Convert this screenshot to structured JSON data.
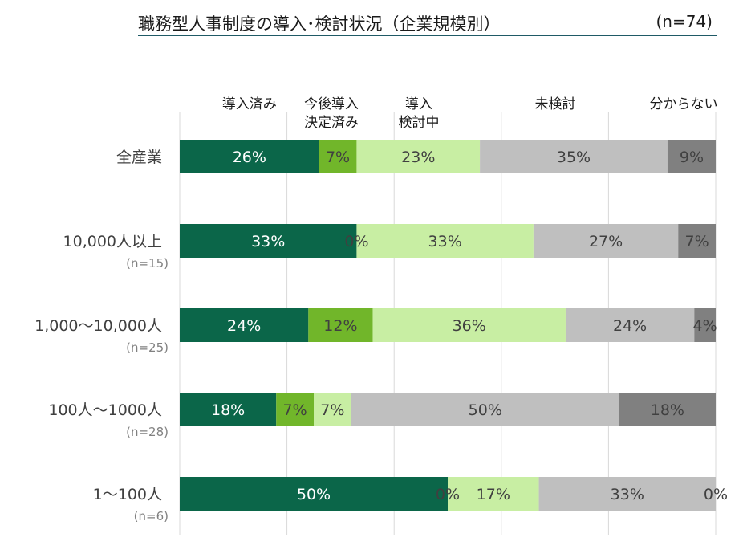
{
  "title": {
    "main": "職務型人事制度の導入･検討状況（企業規模別）",
    "n": "(n=74)"
  },
  "colors": {
    "導入済み": "#0b6649",
    "今後導入決定済み": "#71b62a",
    "導入検討中": "#c8eea3",
    "未検討": "#bfbfbf",
    "分からない": "#808080"
  },
  "chart_data": {
    "type": "bar",
    "orientation": "horizontal",
    "stacked": true,
    "percent": true,
    "categories": [
      {
        "label": "全産業",
        "n": ""
      },
      {
        "label": "10,000人以上",
        "n": "(n=15)"
      },
      {
        "label": "1,000～10,000人",
        "n": "(n=25)"
      },
      {
        "label": "100人～1000人",
        "n": "(n=28)"
      },
      {
        "label": "1～100人",
        "n": "(n=6)"
      }
    ],
    "series": [
      {
        "name": "導入済み",
        "legend_lines": [
          "導入済み"
        ],
        "values": [
          26,
          33,
          24,
          18,
          50
        ],
        "labels": [
          "26%",
          "33%",
          "24%",
          "18%",
          "50%"
        ]
      },
      {
        "name": "今後導入決定済み",
        "legend_lines": [
          "今後導入",
          "決定済み"
        ],
        "values": [
          7,
          0,
          12,
          7,
          0
        ],
        "labels": [
          "7%",
          "0%",
          "12%",
          "7%",
          "0%"
        ]
      },
      {
        "name": "導入検討中",
        "legend_lines": [
          "導入",
          "検討中"
        ],
        "values": [
          23,
          33,
          36,
          7,
          17
        ],
        "labels": [
          "23%",
          "33%",
          "36%",
          "7%",
          "17%"
        ]
      },
      {
        "name": "未検討",
        "legend_lines": [
          "未検討"
        ],
        "values": [
          35,
          27,
          24,
          50,
          33
        ],
        "labels": [
          "35%",
          "27%",
          "24%",
          "50%",
          "33%"
        ]
      },
      {
        "name": "分からない",
        "legend_lines": [
          "分からない"
        ],
        "values": [
          9,
          7,
          4,
          18,
          0
        ],
        "labels": [
          "9%",
          "7%",
          "4%",
          "18%",
          "0%"
        ]
      }
    ],
    "xlim": [
      0,
      100
    ],
    "grid": true,
    "legend_position": "top"
  }
}
